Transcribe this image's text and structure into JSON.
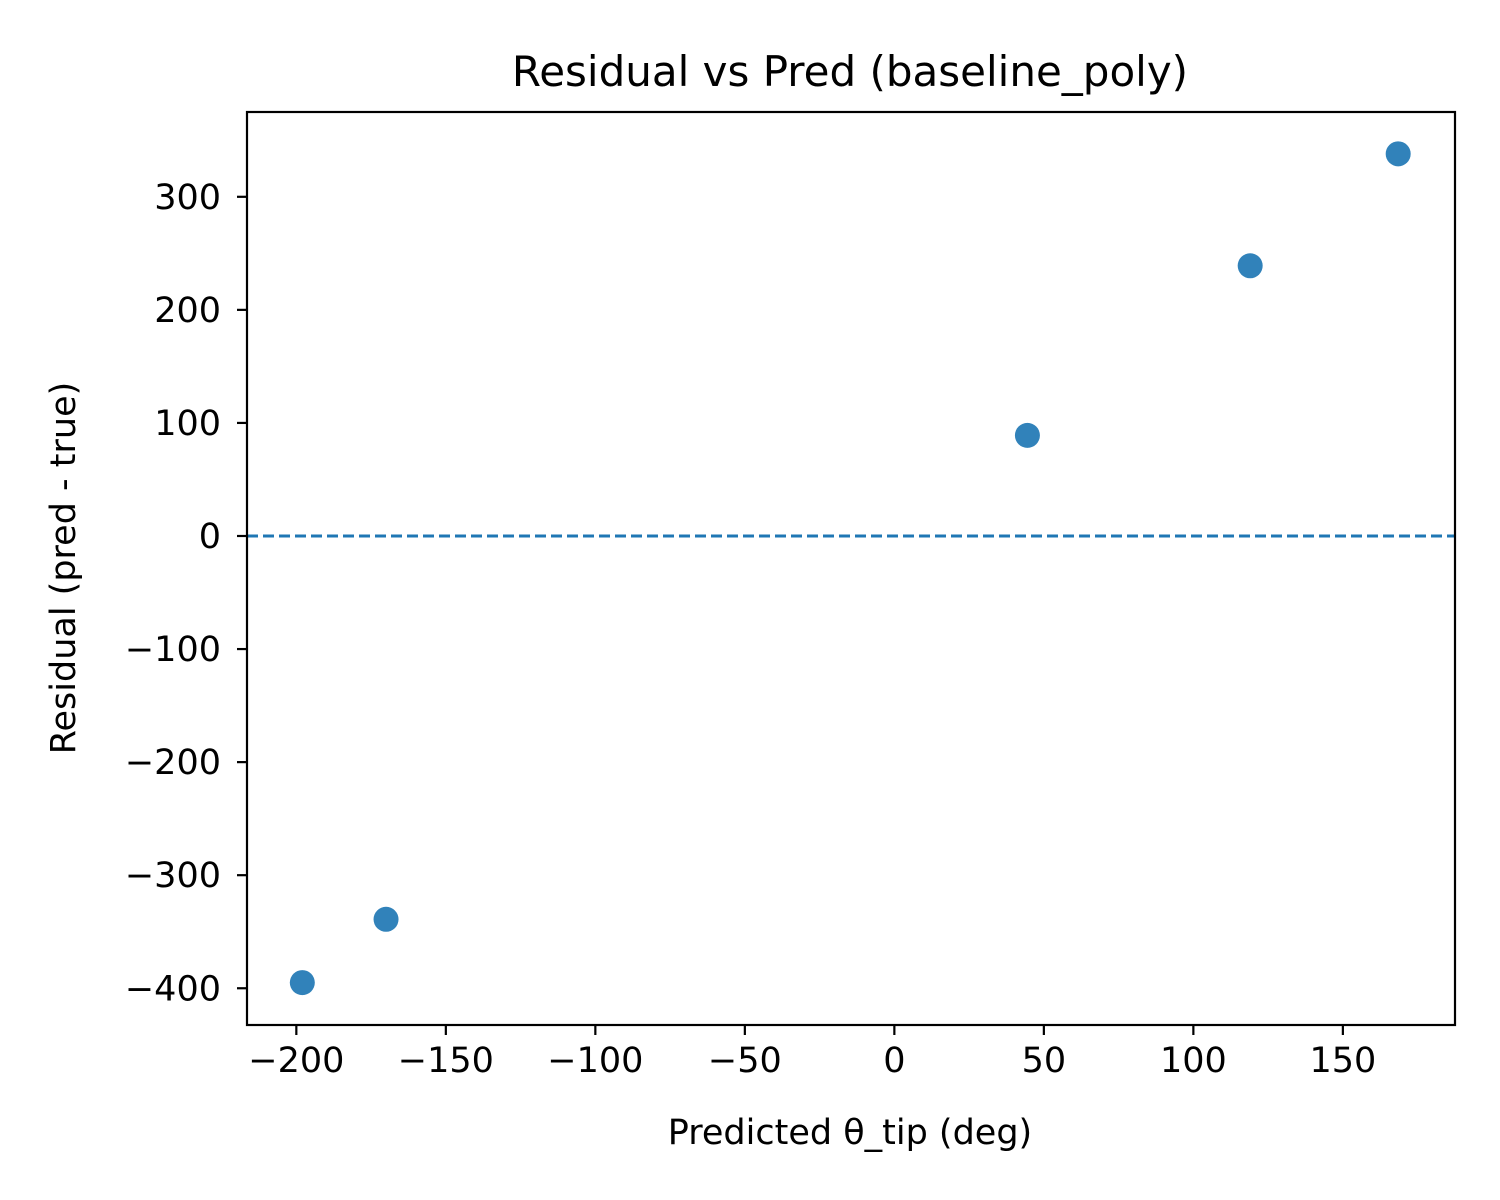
{
  "chart_data": {
    "type": "scatter",
    "title": "Residual vs Pred (baseline_poly)",
    "xlabel": "Predicted θ_tip (deg)",
    "ylabel": "Residual (pred - true)",
    "xlim": [
      -216.5,
      187.5
    ],
    "ylim": [
      -432.5,
      375
    ],
    "xticks": [
      -200,
      -150,
      -100,
      -50,
      0,
      50,
      100,
      150
    ],
    "xtick_labels": [
      "−200",
      "−150",
      "−100",
      "−50",
      "0",
      "50",
      "100",
      "150"
    ],
    "yticks": [
      -400,
      -300,
      -200,
      -100,
      0,
      100,
      200,
      300
    ],
    "ytick_labels": [
      "−400",
      "−300",
      "−200",
      "−100",
      "0",
      "100",
      "200",
      "300"
    ],
    "grid": false,
    "point_color": "#1f77b4",
    "reference_line": {
      "y": 0,
      "style": "dashed",
      "color": "#1f77b4"
    },
    "points": [
      {
        "x": -198,
        "y": -395
      },
      {
        "x": -170,
        "y": -339
      },
      {
        "x": 44.5,
        "y": 89
      },
      {
        "x": 119,
        "y": 239
      },
      {
        "x": 168.5,
        "y": 338
      }
    ]
  }
}
